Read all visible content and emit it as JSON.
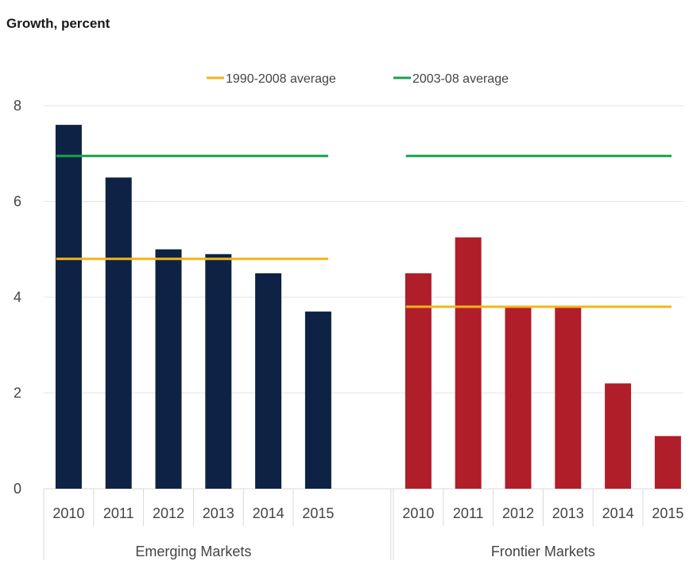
{
  "chart_data": {
    "type": "bar",
    "title": "Growth, percent",
    "ylim": [
      0,
      8
    ],
    "yticks": [
      0,
      2,
      4,
      6,
      8
    ],
    "grid": true,
    "legend_position": "top-center",
    "groups": [
      {
        "name": "Emerging Markets",
        "categories": [
          "2010",
          "2011",
          "2012",
          "2013",
          "2014",
          "2015"
        ],
        "values": [
          7.6,
          6.5,
          5.0,
          4.9,
          4.5,
          3.7
        ],
        "color": "#0d2245",
        "averages": {
          "1990-2008 average": 4.8,
          "2003-08 average": 6.95
        }
      },
      {
        "name": "Frontier Markets",
        "categories": [
          "2010",
          "2011",
          "2012",
          "2013",
          "2014",
          "2015"
        ],
        "values": [
          4.5,
          5.25,
          3.8,
          3.8,
          2.2,
          1.1
        ],
        "color": "#b01e2a",
        "averages": {
          "1990-2008 average": 3.8,
          "2003-08 average": 6.95
        }
      }
    ],
    "legend": [
      {
        "name": "1990-2008 average",
        "color": "#f5b41a"
      },
      {
        "name": "2003-08 average",
        "color": "#1aa050"
      }
    ]
  }
}
